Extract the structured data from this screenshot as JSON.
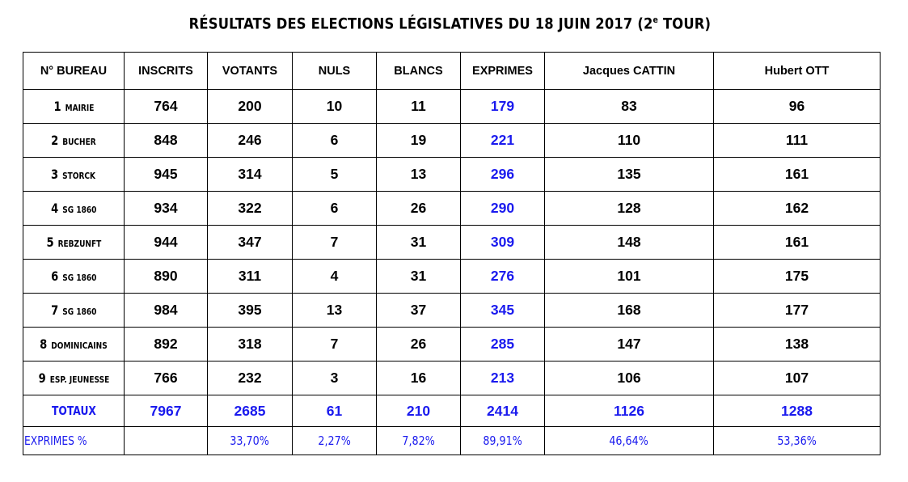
{
  "title_main": "RÉSULTATS DES ELECTIONS LÉGISLATIVES DU 18 JUIN 2017 (2",
  "title_sup": "e",
  "title_end": " TOUR)",
  "headers": [
    "N° BUREAU",
    "INSCRITS",
    "VOTANTS",
    "NULS",
    "BLANCS",
    "EXPRIMES",
    "Jacques CATTIN",
    "Hubert OTT"
  ],
  "rows": [
    {
      "num": "1",
      "name": "MAIRIE",
      "inscrits": "764",
      "votants": "200",
      "nuls": "10",
      "blancs": "11",
      "exprimes": "179",
      "cattin": "83",
      "ott": "96"
    },
    {
      "num": "2",
      "name": "BUCHER",
      "inscrits": "848",
      "votants": "246",
      "nuls": "6",
      "blancs": "19",
      "exprimes": "221",
      "cattin": "110",
      "ott": "111"
    },
    {
      "num": "3",
      "name": "STORCK",
      "inscrits": "945",
      "votants": "314",
      "nuls": "5",
      "blancs": "13",
      "exprimes": "296",
      "cattin": "135",
      "ott": "161"
    },
    {
      "num": "4",
      "name": "SG 1860",
      "inscrits": "934",
      "votants": "322",
      "nuls": "6",
      "blancs": "26",
      "exprimes": "290",
      "cattin": "128",
      "ott": "162"
    },
    {
      "num": "5",
      "name": "REBZUNFT",
      "inscrits": "944",
      "votants": "347",
      "nuls": "7",
      "blancs": "31",
      "exprimes": "309",
      "cattin": "148",
      "ott": "161"
    },
    {
      "num": "6",
      "name": "SG 1860",
      "inscrits": "890",
      "votants": "311",
      "nuls": "4",
      "blancs": "31",
      "exprimes": "276",
      "cattin": "101",
      "ott": "175"
    },
    {
      "num": "7",
      "name": "SG 1860",
      "inscrits": "984",
      "votants": "395",
      "nuls": "13",
      "blancs": "37",
      "exprimes": "345",
      "cattin": "168",
      "ott": "177"
    },
    {
      "num": "8",
      "name": "DOMINICAINS",
      "inscrits": "892",
      "votants": "318",
      "nuls": "7",
      "blancs": "26",
      "exprimes": "285",
      "cattin": "147",
      "ott": "138"
    },
    {
      "num": "9",
      "name": "ESP. JEUNESSE",
      "inscrits": "766",
      "votants": "232",
      "nuls": "3",
      "blancs": "16",
      "exprimes": "213",
      "cattin": "106",
      "ott": "107"
    }
  ],
  "totals": {
    "label": "TOTAUX",
    "inscrits": "7967",
    "votants": "2685",
    "nuls": "61",
    "blancs": "210",
    "exprimes": "2414",
    "cattin": "1126",
    "ott": "1288"
  },
  "percentages": {
    "label": "EXPRIMES %",
    "inscrits": "",
    "votants": "33,70%",
    "nuls": "2,27%",
    "blancs": "7,82%",
    "exprimes": "89,91%",
    "cattin": "46,64%",
    "ott": "53,36%"
  },
  "colors": {
    "blue": "#1a1aee",
    "border": "#000000"
  }
}
